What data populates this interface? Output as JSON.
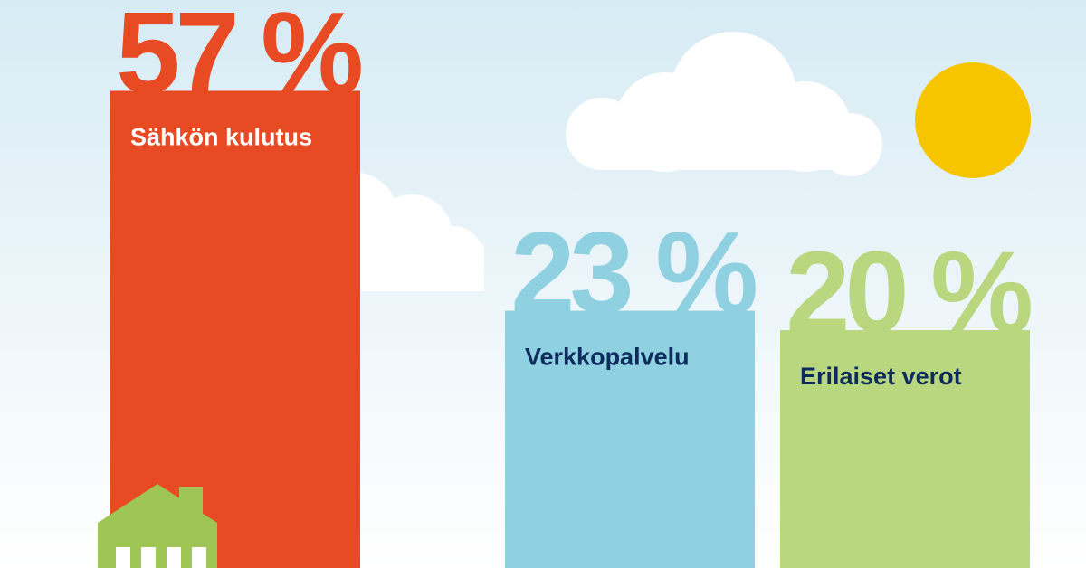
{
  "chart_data": {
    "type": "bar",
    "categories": [
      "Sähkön kulutus",
      "Verkkopalvelu",
      "Erilaiset verot"
    ],
    "values": [
      57,
      23,
      20
    ],
    "value_labels": [
      "57 %",
      "23 %",
      "20 %"
    ],
    "colors": [
      "#e84a23",
      "#8fd1e1",
      "#b9d77f"
    ]
  }
}
